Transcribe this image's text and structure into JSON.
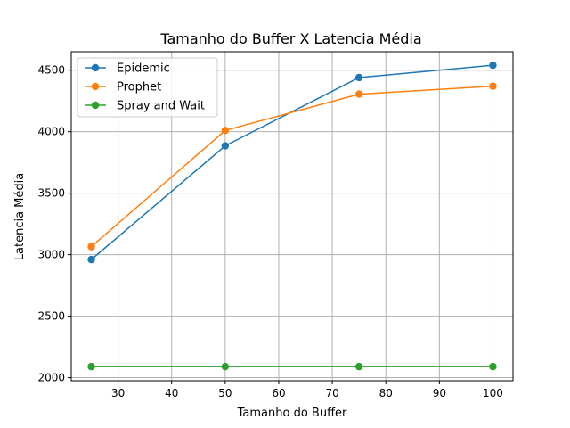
{
  "chart_data": {
    "type": "line",
    "title": "Tamanho do Buffer X Latencia Média",
    "xlabel": "Tamanho do Buffer",
    "ylabel": "Latencia Média",
    "x": [
      25,
      50,
      75,
      100
    ],
    "xlim": [
      21.25,
      103.75
    ],
    "ylim": [
      1975,
      4650
    ],
    "xticks": [
      "30",
      "40",
      "50",
      "60",
      "70",
      "80",
      "90",
      "100"
    ],
    "yticks": [
      "2000",
      "2500",
      "3000",
      "3500",
      "4000",
      "4500"
    ],
    "grid": true,
    "legend_position": "upper left",
    "series": [
      {
        "name": "Epidemic",
        "color": "#1f77b4",
        "values": [
          2960,
          3885,
          4440,
          4540
        ]
      },
      {
        "name": "Prophet",
        "color": "#ff7f0e",
        "values": [
          3065,
          4010,
          4305,
          4370
        ]
      },
      {
        "name": "Spray and Wait",
        "color": "#2ca02c",
        "values": [
          2090,
          2090,
          2090,
          2090
        ]
      }
    ]
  }
}
